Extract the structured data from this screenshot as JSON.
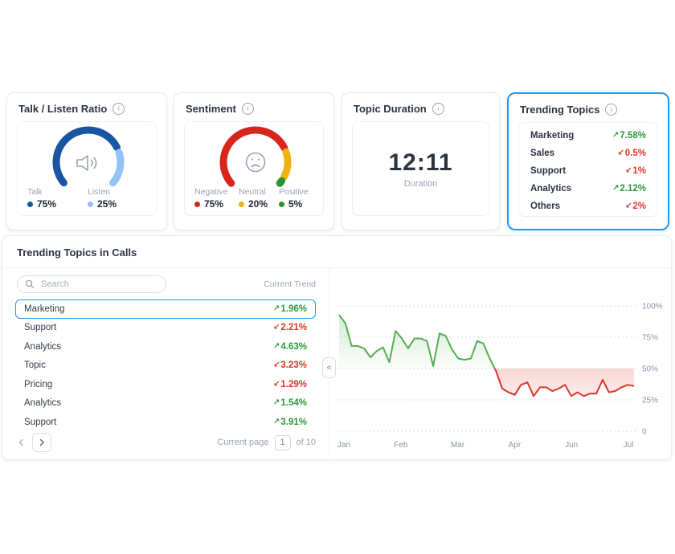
{
  "ui": {
    "info_glyph": "i"
  },
  "arrows": {
    "up": "↗",
    "down": "↙"
  },
  "colors": {
    "accent_blue": "#2196f3",
    "trend_up_green": "#2b9a3e",
    "trend_down_red": "#e0352b",
    "muted_grey": "#9aa3b2"
  },
  "cards": {
    "talk_listen": {
      "title": "Talk / Listen Ratio",
      "segments": [
        {
          "label": "Talk",
          "value": 75,
          "display": "75%",
          "color": "#1a55a3"
        },
        {
          "label": "Listen",
          "value": 25,
          "display": "25%",
          "color": "#93c2f6"
        }
      ]
    },
    "sentiment": {
      "title": "Sentiment",
      "segments": [
        {
          "label": "Negative",
          "value": 75,
          "display": "75%",
          "color": "#d7251c"
        },
        {
          "label": "Neutral",
          "value": 20,
          "display": "20%",
          "color": "#efb30f"
        },
        {
          "label": "Positive",
          "value": 5,
          "display": "5%",
          "color": "#2a9235"
        }
      ]
    },
    "topic_duration": {
      "title": "Topic Duration",
      "value": "12:11",
      "label": "Duration"
    },
    "trending_topics": {
      "title": "Trending Topics",
      "items": [
        {
          "label": "Marketing",
          "trend": "up",
          "value": "7.58%"
        },
        {
          "label": "Sales",
          "trend": "down",
          "value": "0.5%"
        },
        {
          "label": "Support",
          "trend": "down",
          "value": "1%"
        },
        {
          "label": "Analytics",
          "trend": "up",
          "value": "2.12%"
        },
        {
          "label": "Others",
          "trend": "down",
          "value": "2%"
        }
      ]
    }
  },
  "panel": {
    "title": "Trending Topics in Calls",
    "search_placeholder": "Search",
    "search_value": "",
    "column_header": "Current Trend",
    "rows": [
      {
        "label": "Marketing",
        "trend": "up",
        "value": "1.96%",
        "selected": true
      },
      {
        "label": "Support",
        "trend": "down",
        "value": "2.21%",
        "selected": false
      },
      {
        "label": "Analytics",
        "trend": "up",
        "value": "4.63%",
        "selected": false
      },
      {
        "label": "Topic",
        "trend": "down",
        "value": "3.23%",
        "selected": false
      },
      {
        "label": "Pricing",
        "trend": "down",
        "value": "1.29%",
        "selected": false
      },
      {
        "label": "Analytics",
        "trend": "up",
        "value": "1.54%",
        "selected": false
      },
      {
        "label": "Support",
        "trend": "up",
        "value": "3.91%",
        "selected": false
      }
    ],
    "pagination": {
      "label": "Current page",
      "page": "1",
      "of": "of 10"
    },
    "collapse_icon": "«"
  },
  "chart_data": {
    "type": "line",
    "title": "Selected topic trend over time",
    "x_labels": [
      "Jan",
      "Feb",
      "Mar",
      "Apr",
      "Jun",
      "Jul"
    ],
    "y_ticks": [
      "100%",
      "75%",
      "50%",
      "25%",
      "0"
    ],
    "ylim": [
      0,
      100
    ],
    "threshold": 50,
    "grid": "dotted-horizontal",
    "legend_position": "none",
    "colors": {
      "above": "#54ae4f",
      "below": "#dd3428"
    },
    "values": [
      93,
      86,
      68,
      68,
      66,
      59,
      64,
      67,
      55,
      80,
      74,
      66,
      74,
      74,
      72,
      52,
      78,
      76,
      65,
      58,
      57,
      58,
      72,
      70,
      58,
      48,
      34,
      31,
      29,
      37,
      39,
      28,
      35,
      35,
      32,
      34,
      37,
      28,
      31,
      28,
      30,
      30,
      41,
      31,
      32,
      35,
      37,
      36
    ]
  }
}
